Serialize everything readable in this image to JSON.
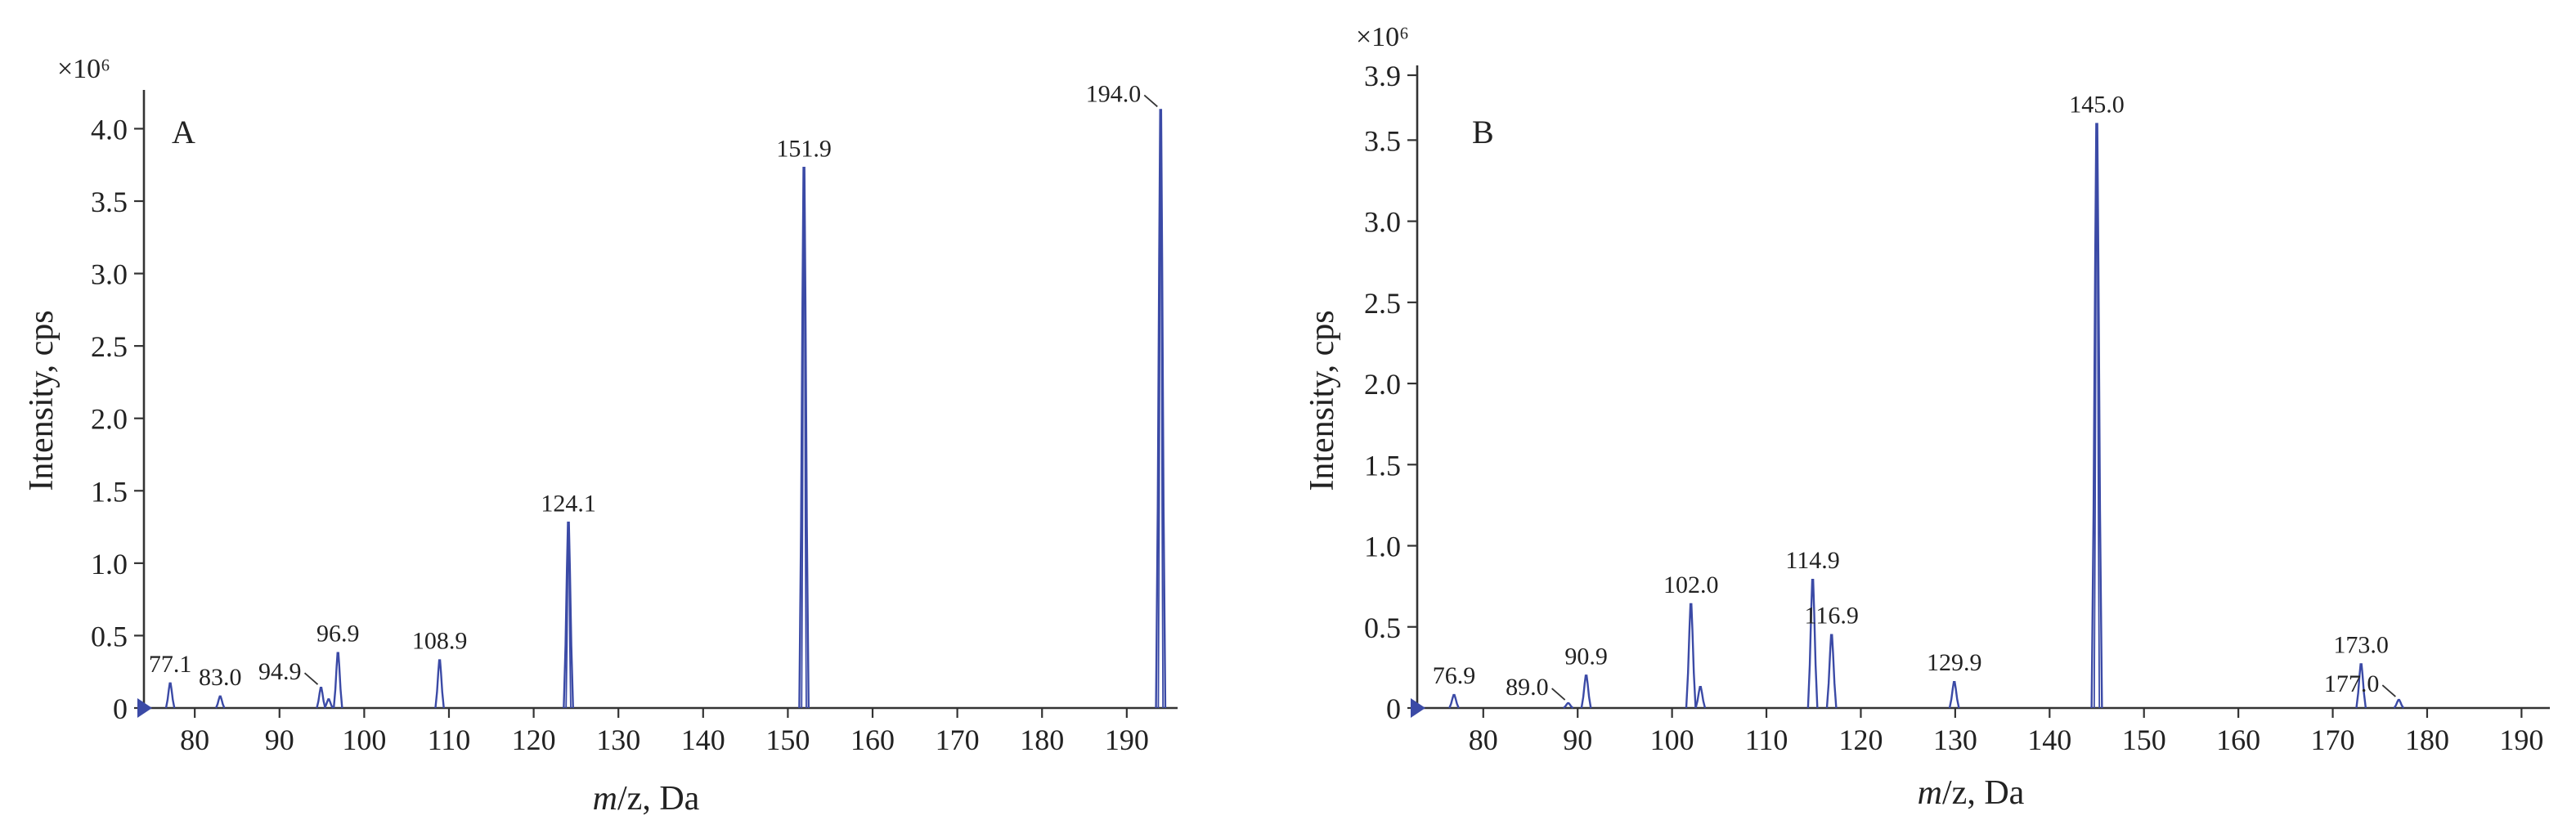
{
  "colors": {
    "spectrum": "#3b4aa6",
    "axis": "#333333",
    "text": "#222222"
  },
  "chart_data": [
    {
      "type": "line",
      "panel": "A",
      "multiplier": "×10⁶",
      "xlabel_prefix": "m",
      "xlabel_suffix": "/z, Da",
      "ylabel": "Intensity, cps",
      "xlim": [
        74,
        196
      ],
      "ylim": [
        0,
        4.2
      ],
      "x_ticks": [
        80,
        90,
        100,
        110,
        120,
        130,
        140,
        150,
        160,
        170,
        180,
        190
      ],
      "x_tick_labels": [
        "80",
        "90",
        "100",
        "110",
        "120",
        "130",
        "140",
        "150",
        "160",
        "170",
        "180",
        "190"
      ],
      "y_ticks": [
        0,
        0.5,
        1.0,
        1.5,
        2.0,
        2.5,
        3.0,
        3.5,
        4.0
      ],
      "y_tick_labels": [
        "0",
        "0.5",
        "1.0",
        "1.5",
        "2.0",
        "2.5",
        "3.0",
        "3.5",
        "4.0"
      ],
      "peaks": [
        {
          "mz": 77.1,
          "intensity": 0.17,
          "label": "77.1"
        },
        {
          "mz": 83.0,
          "intensity": 0.08,
          "label": "83.0"
        },
        {
          "mz": 94.9,
          "intensity": 0.14,
          "label": "94.9",
          "leader": true
        },
        {
          "mz": 95.8,
          "intensity": 0.06
        },
        {
          "mz": 96.9,
          "intensity": 0.38,
          "label": "96.9"
        },
        {
          "mz": 108.9,
          "intensity": 0.33,
          "label": "108.9"
        },
        {
          "mz": 124.1,
          "intensity": 1.28,
          "label": "124.1"
        },
        {
          "mz": 151.9,
          "intensity": 3.73,
          "label": "151.9"
        },
        {
          "mz": 194.0,
          "intensity": 4.13,
          "label": "194.0",
          "leader": true
        }
      ]
    },
    {
      "type": "line",
      "panel": "B",
      "multiplier": "×10⁶",
      "xlabel_prefix": "m",
      "xlabel_suffix": "/z, Da",
      "ylabel": "Intensity, cps",
      "xlim": [
        73,
        193
      ],
      "ylim": [
        0,
        3.9
      ],
      "x_ticks": [
        80,
        90,
        100,
        110,
        120,
        130,
        140,
        150,
        160,
        170,
        180,
        190
      ],
      "x_tick_labels": [
        "80",
        "90",
        "100",
        "110",
        "120",
        "130",
        "140",
        "150",
        "160",
        "170",
        "180",
        "190"
      ],
      "y_ticks": [
        0,
        0.5,
        1.0,
        1.5,
        2.0,
        2.5,
        3.0,
        3.5,
        3.9
      ],
      "y_tick_labels": [
        "0",
        "0.5",
        "1.0",
        "1.5",
        "2.0",
        "2.5",
        "3.0",
        "3.5",
        "3.9"
      ],
      "peaks": [
        {
          "mz": 76.9,
          "intensity": 0.08,
          "label": "76.9"
        },
        {
          "mz": 89.0,
          "intensity": 0.03,
          "label": "89.0",
          "leader": true
        },
        {
          "mz": 90.9,
          "intensity": 0.2,
          "label": "90.9"
        },
        {
          "mz": 102.0,
          "intensity": 0.64,
          "label": "102.0"
        },
        {
          "mz": 103.0,
          "intensity": 0.13
        },
        {
          "mz": 114.9,
          "intensity": 0.79,
          "label": "114.9"
        },
        {
          "mz": 116.9,
          "intensity": 0.45,
          "label": "116.9"
        },
        {
          "mz": 129.9,
          "intensity": 0.16,
          "label": "129.9"
        },
        {
          "mz": 145.0,
          "intensity": 3.6,
          "label": "145.0"
        },
        {
          "mz": 173.0,
          "intensity": 0.27,
          "label": "173.0"
        },
        {
          "mz": 177.0,
          "intensity": 0.05,
          "label": "177.0",
          "leader": true
        }
      ]
    }
  ]
}
